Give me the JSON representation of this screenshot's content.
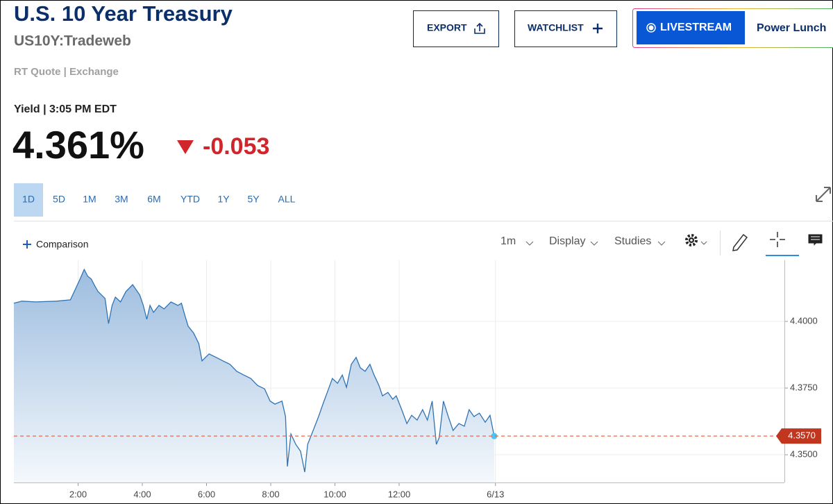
{
  "header": {
    "title": "U.S. 10 Year Treasury",
    "symbol": "US10Y:Tradeweb",
    "quote_type": "RT Quote | Exchange",
    "yield_label": "Yield | 3:05 PM EDT",
    "last": "4.361%",
    "change": "-0.053"
  },
  "buttons": {
    "export": "EXPORT",
    "watchlist": "WATCHLIST",
    "livestream": "LIVESTREAM",
    "show": "Power Lunch"
  },
  "range_tabs": [
    "1D",
    "5D",
    "1M",
    "3M",
    "6M",
    "YTD",
    "1Y",
    "5Y",
    "ALL"
  ],
  "selected_range": "1D",
  "toolbar": {
    "comparison": "Comparison",
    "interval": "1m",
    "display": "Display",
    "studies": "Studies"
  },
  "chart_data": {
    "type": "area",
    "x": [
      0,
      0.25,
      0.68,
      1.33,
      1.76,
      1.93,
      2.08,
      2.19,
      2.3,
      2.41,
      2.52,
      2.62,
      2.84,
      2.95,
      3.06,
      3.16,
      3.32,
      3.49,
      3.7,
      3.92,
      4.03,
      4.14,
      4.24,
      4.35,
      4.52,
      4.68,
      4.89,
      5.11,
      5.22,
      5.33,
      5.43,
      5.6,
      5.76,
      5.86,
      6.08,
      6.3,
      6.51,
      6.73,
      6.94,
      7.16,
      7.38,
      7.59,
      7.81,
      7.98,
      8.13,
      8.35,
      8.46,
      8.52,
      8.63,
      8.78,
      8.93,
      9.06,
      9.15,
      9.32,
      9.49,
      9.64,
      9.8,
      9.92,
      10.08,
      10.23,
      10.36,
      10.51,
      10.66,
      10.79,
      10.94,
      11.09,
      11.22,
      11.37,
      11.48,
      11.65,
      11.8,
      11.91,
      12.08,
      12.24,
      12.39,
      12.56,
      12.73,
      12.88,
      13.03,
      13.16,
      13.25,
      13.38,
      13.53,
      13.68,
      13.86,
      14.03,
      14.18,
      14.33,
      14.5,
      14.68,
      14.83,
      14.96
    ],
    "values": [
      4.4068,
      4.4076,
      4.4073,
      4.4076,
      4.4081,
      4.4125,
      4.4164,
      4.4195,
      4.4169,
      4.4159,
      4.4133,
      4.4112,
      4.4086,
      4.3992,
      4.406,
      4.4091,
      4.4073,
      4.4112,
      4.4138,
      4.4099,
      4.406,
      4.4008,
      4.406,
      4.4034,
      4.406,
      4.4047,
      4.4073,
      4.406,
      4.4068,
      4.4021,
      4.3982,
      4.3956,
      4.3917,
      4.3852,
      4.3878,
      4.3865,
      4.3852,
      4.3839,
      4.3813,
      4.3799,
      4.3786,
      4.376,
      4.3747,
      4.3701,
      4.369,
      4.3701,
      4.3643,
      4.3456,
      4.3578,
      4.3539,
      4.3513,
      4.3435,
      4.3539,
      4.3591,
      4.3643,
      4.3695,
      4.3747,
      4.3786,
      4.3768,
      4.3799,
      4.3753,
      4.3839,
      4.3865,
      4.3826,
      4.3813,
      4.3839,
      4.3799,
      4.376,
      4.3721,
      4.3734,
      4.3708,
      4.3721,
      4.3669,
      4.3617,
      4.3648,
      4.363,
      4.3669,
      4.363,
      4.3701,
      4.3539,
      4.3565,
      4.3701,
      4.3643,
      4.3591,
      4.3617,
      4.3607,
      4.3669,
      4.3643,
      4.3656,
      4.3622,
      4.3648,
      4.357
    ],
    "color": "#2f73b3",
    "xlim": [
      0,
      24
    ],
    "xticks": [
      {
        "value": 2,
        "label": "2:00"
      },
      {
        "value": 4,
        "label": "4:00"
      },
      {
        "value": 6,
        "label": "6:00"
      },
      {
        "value": 8,
        "label": "8:00"
      },
      {
        "value": 10,
        "label": "10:00"
      },
      {
        "value": 12,
        "label": "12:00"
      },
      {
        "value": 15,
        "label": "6/13"
      }
    ],
    "ylim": [
      4.3396,
      4.4229
    ],
    "yticks": [
      {
        "value": 4.35,
        "label": "4.3500"
      },
      {
        "value": 4.375,
        "label": "4.3750"
      },
      {
        "value": 4.4,
        "label": "4.4000"
      }
    ],
    "last_value": {
      "value": 4.357,
      "label": "4.3570"
    },
    "grid": true
  }
}
